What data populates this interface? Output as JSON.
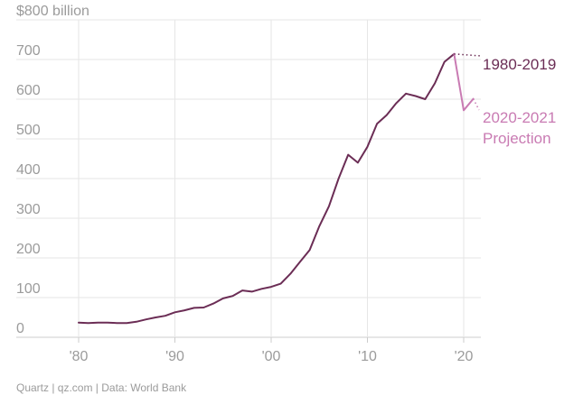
{
  "chart_data": {
    "type": "line",
    "title": "",
    "xlabel": "",
    "ylabel": "",
    "ylim": [
      0,
      800
    ],
    "xlim": [
      1978,
      2022
    ],
    "y_ticks": [
      {
        "value": 0,
        "label": "0"
      },
      {
        "value": 100,
        "label": "100"
      },
      {
        "value": 200,
        "label": "200"
      },
      {
        "value": 300,
        "label": "300"
      },
      {
        "value": 400,
        "label": "400"
      },
      {
        "value": 500,
        "label": "500"
      },
      {
        "value": 600,
        "label": "600"
      },
      {
        "value": 700,
        "label": "700"
      },
      {
        "value": 800,
        "label": "$800 billion"
      }
    ],
    "x_ticks": [
      {
        "value": 1980,
        "label": "'80"
      },
      {
        "value": 1990,
        "label": "'90"
      },
      {
        "value": 2000,
        "label": "'00"
      },
      {
        "value": 2010,
        "label": "'10"
      },
      {
        "value": 2020,
        "label": "'20"
      }
    ],
    "grid": true,
    "series": [
      {
        "name": "1980-2019",
        "color": "#6b2d55",
        "x": [
          1980,
          1981,
          1982,
          1983,
          1984,
          1985,
          1986,
          1987,
          1988,
          1989,
          1990,
          1991,
          1992,
          1993,
          1994,
          1995,
          1996,
          1997,
          1998,
          1999,
          2000,
          2001,
          2002,
          2003,
          2004,
          2005,
          2006,
          2007,
          2008,
          2009,
          2010,
          2011,
          2012,
          2013,
          2014,
          2015,
          2016,
          2017,
          2018,
          2019
        ],
        "y": [
          37,
          36,
          37,
          37,
          36,
          36,
          39,
          45,
          50,
          54,
          63,
          68,
          74,
          75,
          85,
          98,
          104,
          118,
          115,
          122,
          127,
          135,
          160,
          190,
          220,
          280,
          330,
          400,
          460,
          440,
          480,
          538,
          560,
          590,
          614,
          608,
          600,
          640,
          694,
          714
        ]
      },
      {
        "name": "2020-2021 Projection",
        "color": "#c97bb3",
        "x": [
          2019,
          2020,
          2021
        ],
        "y": [
          714,
          572,
          601
        ]
      }
    ],
    "annotations": [
      {
        "text": "1980-2019",
        "series": "1980-2019"
      },
      {
        "text": "2020-2021",
        "series": "2020-2021 Projection"
      },
      {
        "text": "Projection",
        "series": "2020-2021 Projection"
      }
    ]
  },
  "source": "Quartz | qz.com | Data: World Bank"
}
